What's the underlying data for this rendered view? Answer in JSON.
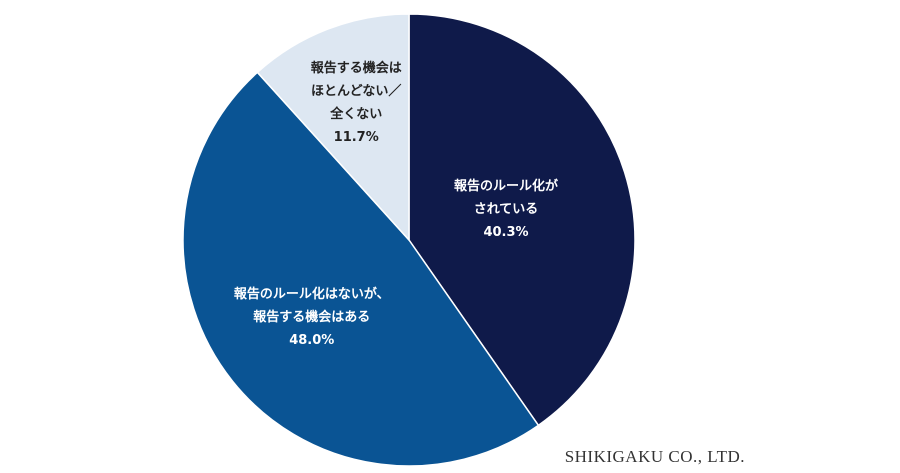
{
  "chart_data": {
    "type": "pie",
    "categories": [
      [
        "報告のルール化が",
        "されている"
      ],
      [
        "報告のルール化はないが、",
        "報告する機会はある"
      ],
      [
        "報告する機会は",
        "ほとんどない／",
        "全くない"
      ]
    ],
    "values": [
      40.3,
      48.0,
      11.7
    ],
    "value_labels": [
      "40.3%",
      "48.0%",
      "11.7%"
    ],
    "colors": [
      "#0f1a4a",
      "#0a5494",
      "#dde7f2"
    ],
    "source": "SHIKIGAKU CO., LTD."
  }
}
